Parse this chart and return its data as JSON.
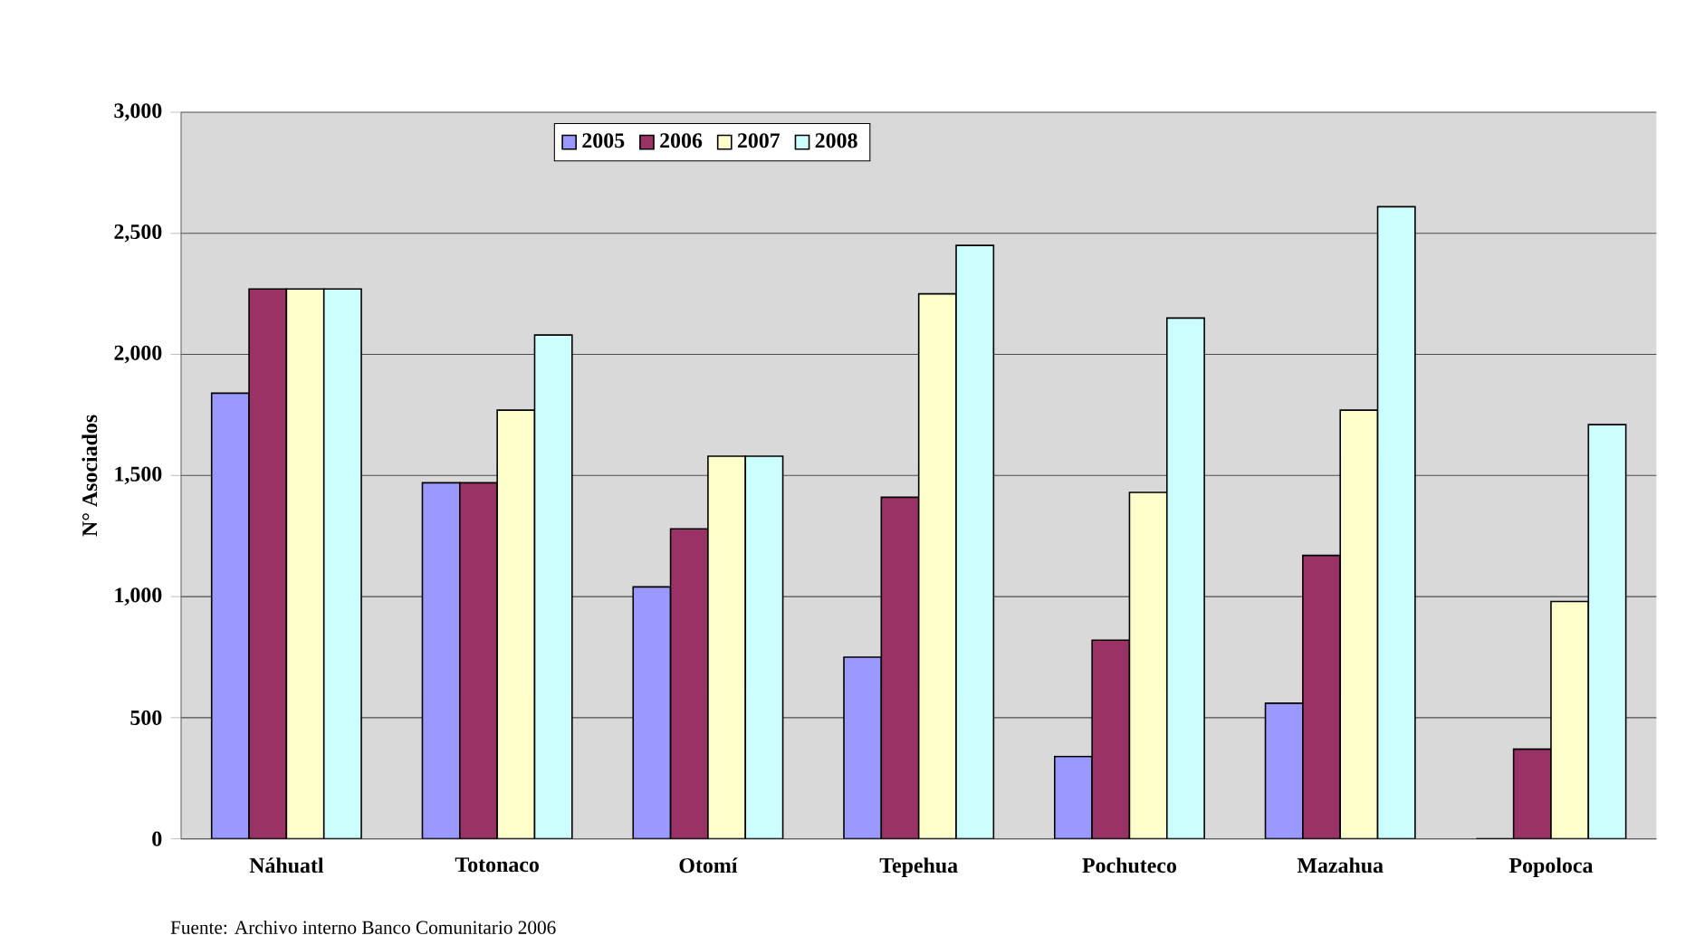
{
  "chart_data": {
    "type": "bar",
    "ylabel": "N° Asociados",
    "categories": [
      "Náhuatl",
      "Totonaco",
      "Otomí",
      "Tepehua",
      "Pochuteco",
      "Mazahua",
      "Popoloca"
    ],
    "series": [
      {
        "name": "2005",
        "color": "#9999ff",
        "values": [
          1840,
          1470,
          1040,
          750,
          340,
          560,
          0
        ]
      },
      {
        "name": "2006",
        "color": "#993366",
        "values": [
          2270,
          1470,
          1280,
          1410,
          820,
          1170,
          370
        ]
      },
      {
        "name": "2007",
        "color": "#ffffcc",
        "values": [
          2270,
          1770,
          1580,
          2250,
          1430,
          1770,
          980
        ]
      },
      {
        "name": "2008",
        "color": "#ccffff",
        "values": [
          2270,
          2080,
          1580,
          2450,
          2150,
          2610,
          1710
        ]
      }
    ],
    "ylim": [
      0,
      3000
    ],
    "yticks": [
      0,
      500,
      {
        "value": 1000,
        "label": "1,000"
      },
      {
        "value": 1500,
        "label": "1,500"
      },
      {
        "value": 2000,
        "label": "2,000"
      },
      {
        "value": 2500,
        "label": "2,500"
      },
      {
        "value": 3000,
        "label": "3,000"
      }
    ],
    "grid": "y",
    "legend": "top",
    "annotations": [
      "Fuente: Archivo interno Banco Comunitario 2006"
    ]
  }
}
